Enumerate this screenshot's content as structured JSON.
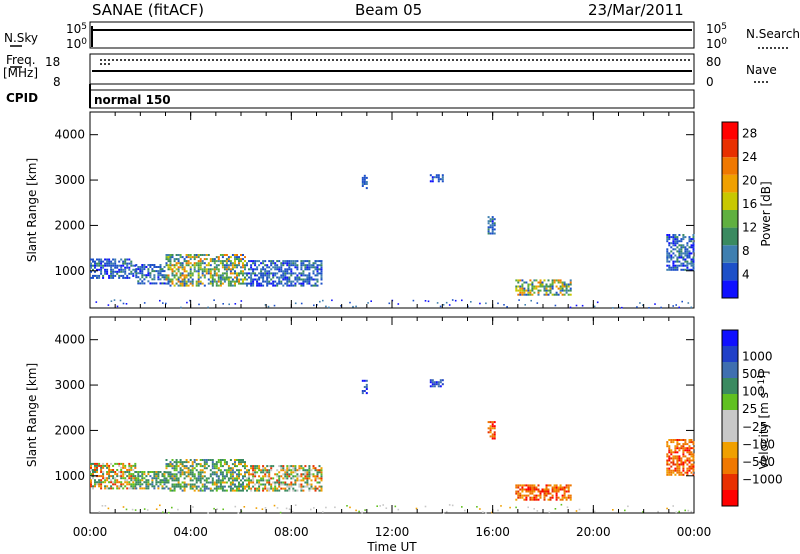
{
  "header": {
    "station": "SANAE (fitACF)",
    "beam": "Beam 05",
    "date": "23/Mar/2011"
  },
  "strips": {
    "nsky_label": "N.Sky",
    "nsearch_label": "N.Search",
    "freq_label_1": "Freq.",
    "freq_label_2": "[MHz]",
    "nave_label": "Nave",
    "cpid_label": "CPID",
    "cpid_value": "normal 150",
    "nsky_ticks": [
      "10^5",
      "10^0"
    ],
    "nsearch_ticks": [
      "10^5",
      "10^0"
    ],
    "freq_ticks": [
      "18",
      "8"
    ],
    "nave_ticks": [
      "80",
      "0"
    ]
  },
  "xaxis": {
    "label": "Time UT",
    "ticks": [
      "00:00",
      "04:00",
      "08:00",
      "12:00",
      "16:00",
      "20:00",
      "00:00"
    ]
  },
  "colors": {
    "power_scale": [
      "#1010ff",
      "#1d50c8",
      "#3f7fb0",
      "#3a8a60",
      "#60b040",
      "#c8c800",
      "#f0a000",
      "#f07800",
      "#e83000",
      "#ff0000"
    ],
    "velocity_scale": [
      "#ff0000",
      "#e83000",
      "#f07800",
      "#f0a000",
      "#c8c8c8",
      "#c8c8c8",
      "#60c020",
      "#3a8a60",
      "#3f6fb0",
      "#2040c8",
      "#1010ff"
    ]
  },
  "chart_data": [
    {
      "type": "heatmap",
      "panel": "power",
      "ylabel": "Slant Range [km]",
      "xlabel": "Time UT",
      "xlim": [
        0,
        24
      ],
      "ylim": [
        180,
        4500
      ],
      "yticks": [
        "1000",
        "2000",
        "3000",
        "4000"
      ],
      "colorbar": {
        "label": "Power [dB]",
        "range": [
          0,
          30
        ],
        "ticks": [
          "4",
          "8",
          "12",
          "16",
          "20",
          "24",
          "28"
        ]
      },
      "regions": [
        {
          "t0": 0.0,
          "t1": 1.8,
          "r0": 820,
          "r1": 1250,
          "level": "weak"
        },
        {
          "t0": 1.8,
          "t1": 3.0,
          "r0": 700,
          "r1": 1150,
          "level": "weak"
        },
        {
          "t0": 3.0,
          "t1": 6.2,
          "r0": 650,
          "r1": 1350,
          "level": "strong"
        },
        {
          "t0": 6.2,
          "t1": 9.2,
          "r0": 650,
          "r1": 1200,
          "level": "weak"
        },
        {
          "t0": 10.8,
          "t1": 11.0,
          "r0": 2800,
          "r1": 3100,
          "level": "weak"
        },
        {
          "t0": 13.5,
          "t1": 14.0,
          "r0": 2950,
          "r1": 3100,
          "level": "weak"
        },
        {
          "t0": 15.8,
          "t1": 16.1,
          "r0": 1800,
          "r1": 2200,
          "level": "weak"
        },
        {
          "t0": 16.9,
          "t1": 19.1,
          "r0": 450,
          "r1": 800,
          "level": "strong"
        },
        {
          "t0": 22.9,
          "t1": 24.0,
          "r0": 1000,
          "r1": 1800,
          "level": "weak"
        }
      ]
    },
    {
      "type": "heatmap",
      "panel": "velocity",
      "ylabel": "Slant Range [km]",
      "xlabel": "Time UT",
      "xlim": [
        0,
        24
      ],
      "ylim": [
        180,
        4500
      ],
      "yticks": [
        "1000",
        "2000",
        "3000",
        "4000"
      ],
      "colorbar": {
        "label": "Velocity [m s^-1]",
        "ticks": [
          "-1000",
          "-500",
          "-100",
          "-25",
          "25",
          "100",
          "500",
          "1000"
        ]
      },
      "regions": [
        {
          "t0": 0.0,
          "t1": 1.8,
          "r0": 700,
          "r1": 1250,
          "level": "mixed"
        },
        {
          "t0": 1.8,
          "t1": 3.0,
          "r0": 700,
          "r1": 1100,
          "level": "green"
        },
        {
          "t0": 3.0,
          "t1": 6.2,
          "r0": 650,
          "r1": 1350,
          "level": "green"
        },
        {
          "t0": 6.2,
          "t1": 9.2,
          "r0": 650,
          "r1": 1200,
          "level": "mixed"
        },
        {
          "t0": 10.8,
          "t1": 11.0,
          "r0": 2800,
          "r1": 3100,
          "level": "blue"
        },
        {
          "t0": 13.5,
          "t1": 14.0,
          "r0": 2950,
          "r1": 3100,
          "level": "blue"
        },
        {
          "t0": 15.8,
          "t1": 16.1,
          "r0": 1800,
          "r1": 2200,
          "level": "orange"
        },
        {
          "t0": 16.9,
          "t1": 19.1,
          "r0": 450,
          "r1": 800,
          "level": "orange"
        },
        {
          "t0": 22.9,
          "t1": 24.0,
          "r0": 1000,
          "r1": 1800,
          "level": "orange"
        }
      ]
    }
  ]
}
